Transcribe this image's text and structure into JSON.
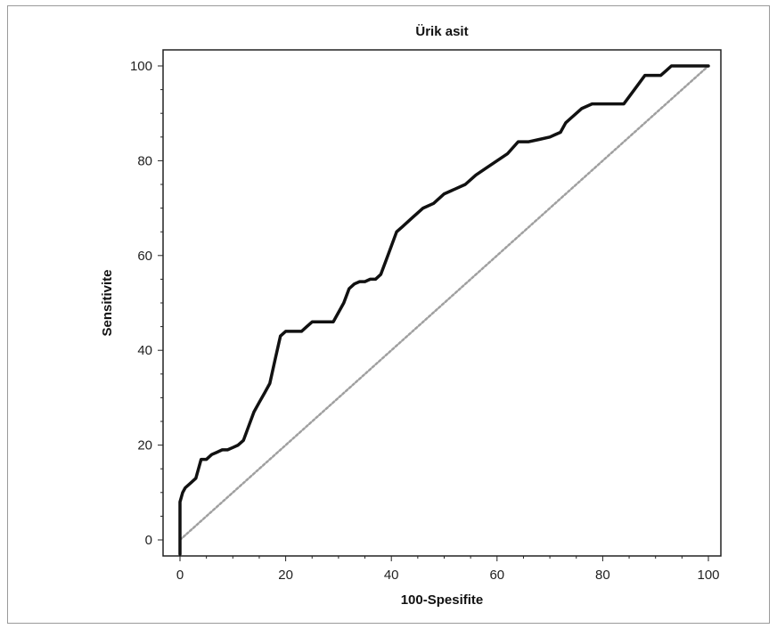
{
  "chart_data": {
    "type": "line",
    "title": "Ürik asit",
    "xlabel": "100-Spesifite",
    "ylabel": "Sensitivite",
    "xlim": [
      0,
      100
    ],
    "ylim": [
      0,
      100
    ],
    "xticks": [
      0,
      20,
      40,
      60,
      80,
      100
    ],
    "yticks": [
      0,
      20,
      40,
      60,
      80,
      100
    ],
    "grid": false,
    "series": [
      {
        "style": "solid",
        "color": "#111111",
        "x": [
          0,
          0,
          0.5,
          1,
          2,
          3,
          4,
          5,
          6,
          7,
          8,
          9,
          10,
          11,
          12,
          13,
          14,
          15,
          16,
          17,
          18,
          19,
          20,
          21,
          22,
          23,
          24,
          25,
          26,
          27,
          28,
          29,
          30,
          31,
          32,
          33,
          34,
          35,
          36,
          37,
          38,
          39,
          40,
          41,
          42,
          43,
          44,
          45,
          46,
          48,
          50,
          52,
          54,
          56,
          58,
          60,
          62,
          64,
          66,
          68,
          70,
          71,
          72,
          73,
          74,
          75,
          76,
          78,
          80,
          82,
          84,
          86,
          88,
          90,
          91,
          92,
          93,
          94,
          96,
          98,
          100
        ],
        "y": [
          -3,
          8,
          10,
          11,
          12,
          13,
          17,
          17,
          18,
          18.5,
          19,
          19,
          19.5,
          20,
          21,
          24,
          27,
          29,
          31,
          33,
          38,
          43,
          44,
          44,
          44,
          44,
          45,
          46,
          46,
          46,
          46,
          46,
          48,
          50,
          53,
          54,
          54.5,
          54.5,
          55,
          55,
          56,
          59,
          62,
          65,
          66,
          67,
          68,
          69,
          70,
          71,
          73,
          74,
          75,
          77,
          78.5,
          80,
          81.5,
          84,
          84,
          84.5,
          85,
          85.5,
          86,
          88,
          89,
          90,
          91,
          92,
          92,
          92,
          92,
          95,
          98,
          98,
          98,
          99,
          100,
          100,
          100,
          100,
          100
        ]
      },
      {
        "style": "dotted",
        "color": "#a0a0a0",
        "x": [
          0,
          100
        ],
        "y": [
          0,
          100
        ]
      }
    ]
  }
}
